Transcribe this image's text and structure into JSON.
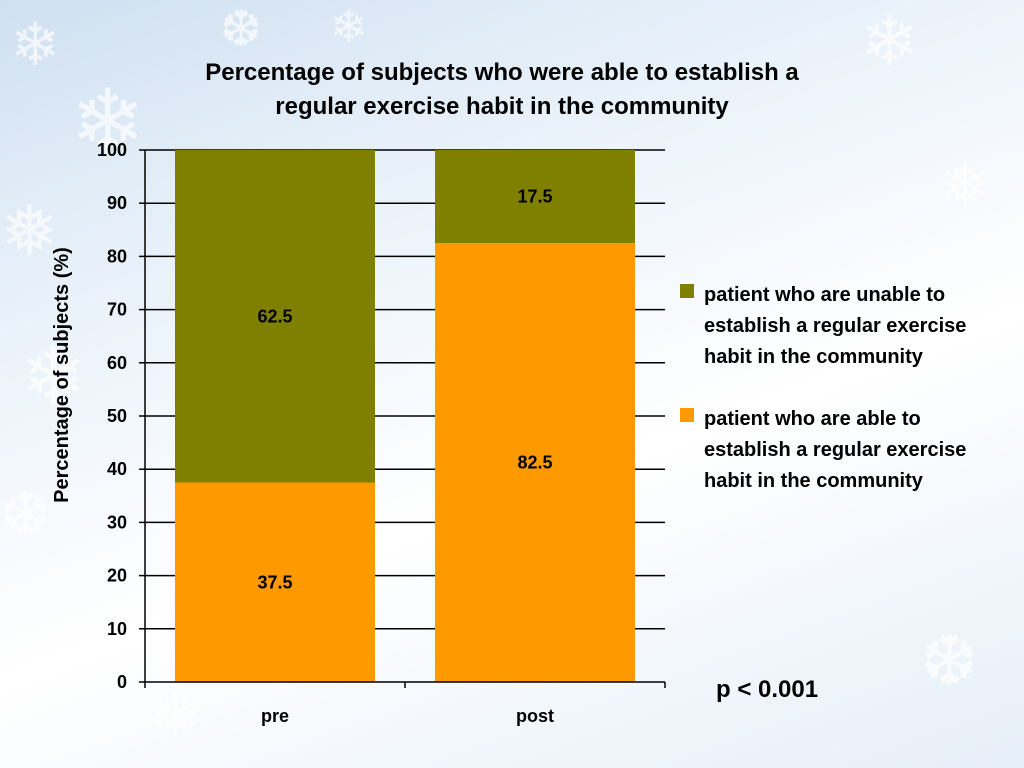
{
  "chart_data": {
    "type": "bar",
    "stacked": true,
    "title": "Percentage of subjects who were able to establish a regular exercise habit in the community",
    "title_lines": [
      "Percentage of subjects who were able to establish a",
      "regular exercise habit in the community"
    ],
    "xlabel": "",
    "ylabel": "Percentage  of subjects (%)",
    "ylim": [
      0,
      100
    ],
    "yticks": [
      0,
      10,
      20,
      30,
      40,
      50,
      60,
      70,
      80,
      90,
      100
    ],
    "grid": true,
    "categories": [
      "pre",
      "post"
    ],
    "series": [
      {
        "name": "patient who are able to establish a regular exercise habit in the community",
        "values": [
          37.5,
          82.5
        ],
        "color": "#ff9900"
      },
      {
        "name": "patient who are unable to establish a regular exercise habit in the community",
        "values": [
          62.5,
          17.5
        ],
        "color": "#808000"
      }
    ],
    "legend": {
      "position": "right",
      "items": [
        {
          "label": "patient who are unable to establish a regular exercise habit in the community",
          "color": "#808000"
        },
        {
          "label": "patient who are able to establish a regular exercise habit in the community",
          "color": "#ff9900"
        }
      ]
    },
    "annotation": "p < 0.001"
  }
}
